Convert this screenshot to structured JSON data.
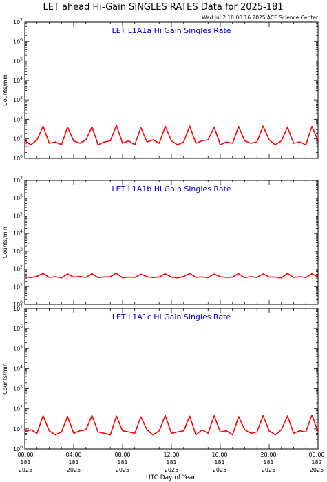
{
  "title": "LET ahead Hi-Gain SINGLES RATES Data for 2025-181",
  "timestamp": "Wed Jul  2 10:00:16 2025 ACE Science Center",
  "xlabel": "UTC Day of Year",
  "colors": {
    "series": "#ff0000",
    "panel_title": "#0000cc",
    "axes": "#000000",
    "background": "#ffffff"
  },
  "chart_data": [
    {
      "type": "line",
      "title": "LET L1A1a Hi Gain Singles Rate",
      "ylabel": "Counts/min",
      "yscale": "log",
      "ylim": [
        1,
        10000000
      ],
      "ytick_exponents": [
        0,
        1,
        2,
        3,
        4,
        5,
        6,
        7
      ],
      "xlim": [
        0,
        24
      ],
      "grid": false,
      "series": [
        {
          "color": "#ff0000",
          "x": [
            0,
            0.5,
            1,
            1.5,
            2,
            2.5,
            3,
            3.5,
            4,
            4.5,
            5,
            5.5,
            6,
            6.5,
            7,
            7.5,
            8,
            8.5,
            9,
            9.5,
            10,
            10.5,
            11,
            11.5,
            12,
            12.5,
            13,
            13.5,
            14,
            14.5,
            15,
            15.5,
            16,
            16.5,
            17,
            17.5,
            18,
            18.5,
            19,
            19.5,
            20,
            20.5,
            21,
            21.5,
            22,
            22.5,
            23,
            23.5,
            24
          ],
          "values": [
            8,
            5,
            9,
            45,
            6,
            7,
            5,
            40,
            8,
            6,
            9,
            42,
            5,
            7,
            8,
            50,
            6,
            8,
            5,
            38,
            7,
            9,
            6,
            44,
            8,
            5,
            7,
            46,
            6,
            8,
            9,
            40,
            5,
            7,
            6,
            43,
            8,
            6,
            7,
            45,
            9,
            5,
            8,
            41,
            6,
            7,
            5,
            44,
            8
          ]
        }
      ]
    },
    {
      "type": "line",
      "title": "LET L1A1b Hi Gain Singles Rate",
      "ylabel": "Counts/min",
      "yscale": "log",
      "ylim": [
        1,
        10000000
      ],
      "ytick_exponents": [
        0,
        1,
        2,
        3,
        4,
        5,
        6,
        7
      ],
      "xlim": [
        0,
        24
      ],
      "grid": false,
      "series": [
        {
          "color": "#ff0000",
          "x": [
            0,
            0.5,
            1,
            1.5,
            2,
            2.5,
            3,
            3.5,
            4,
            4.5,
            5,
            5.5,
            6,
            6.5,
            7,
            7.5,
            8,
            8.5,
            9,
            9.5,
            10,
            10.5,
            11,
            11.5,
            12,
            12.5,
            13,
            13.5,
            14,
            14.5,
            15,
            15.5,
            16,
            16.5,
            17,
            17.5,
            18,
            18.5,
            19,
            19.5,
            20,
            20.5,
            21,
            21.5,
            22,
            22.5,
            23,
            23.5,
            24
          ],
          "values": [
            35,
            32,
            38,
            55,
            33,
            36,
            31,
            52,
            34,
            37,
            33,
            54,
            32,
            35,
            36,
            56,
            31,
            34,
            33,
            50,
            36,
            32,
            35,
            53,
            34,
            31,
            37,
            55,
            33,
            35,
            32,
            51,
            36,
            33,
            34,
            54,
            32,
            36,
            33,
            52,
            35,
            34,
            31,
            55,
            33,
            36,
            32,
            53,
            34
          ]
        }
      ]
    },
    {
      "type": "line",
      "title": "LET L1A1c Hi Gain Singles Rate",
      "ylabel": "Counts/min",
      "yscale": "log",
      "ylim": [
        1,
        10000000
      ],
      "ytick_exponents": [
        0,
        1,
        2,
        3,
        4,
        5,
        6,
        7
      ],
      "xlim": [
        0,
        24
      ],
      "grid": false,
      "x_tick_labels": [
        [
          "00:00",
          "181",
          "2025"
        ],
        [
          "04:00",
          "181",
          "2025"
        ],
        [
          "08:00",
          "181",
          "2025"
        ],
        [
          "12:00",
          "181",
          "2025"
        ],
        [
          "16:00",
          "181",
          "2025"
        ],
        [
          "20:00",
          "181",
          "2025"
        ],
        [
          "00:00",
          "182",
          "2025"
        ]
      ],
      "series": [
        {
          "color": "#ff0000",
          "x": [
            0,
            0.5,
            1,
            1.5,
            2,
            2.5,
            3,
            3.5,
            4,
            4.5,
            5,
            5.5,
            6,
            6.5,
            7,
            7.5,
            8,
            8.5,
            9,
            9.5,
            10,
            10.5,
            11,
            11.5,
            12,
            12.5,
            13,
            13.5,
            14,
            14.5,
            15,
            15.5,
            16,
            16.5,
            17,
            17.5,
            18,
            18.5,
            19,
            19.5,
            20,
            20.5,
            21,
            21.5,
            22,
            22.5,
            23,
            23.5,
            24
          ],
          "values": [
            7,
            9,
            6,
            45,
            8,
            5,
            7,
            42,
            6,
            8,
            9,
            46,
            7,
            6,
            5,
            44,
            8,
            7,
            6,
            40,
            9,
            5,
            8,
            47,
            6,
            7,
            8,
            43,
            5,
            9,
            6,
            45,
            7,
            8,
            5,
            41,
            9,
            6,
            7,
            46,
            8,
            5,
            9,
            44,
            6,
            8,
            7,
            50,
            7
          ]
        }
      ]
    }
  ]
}
